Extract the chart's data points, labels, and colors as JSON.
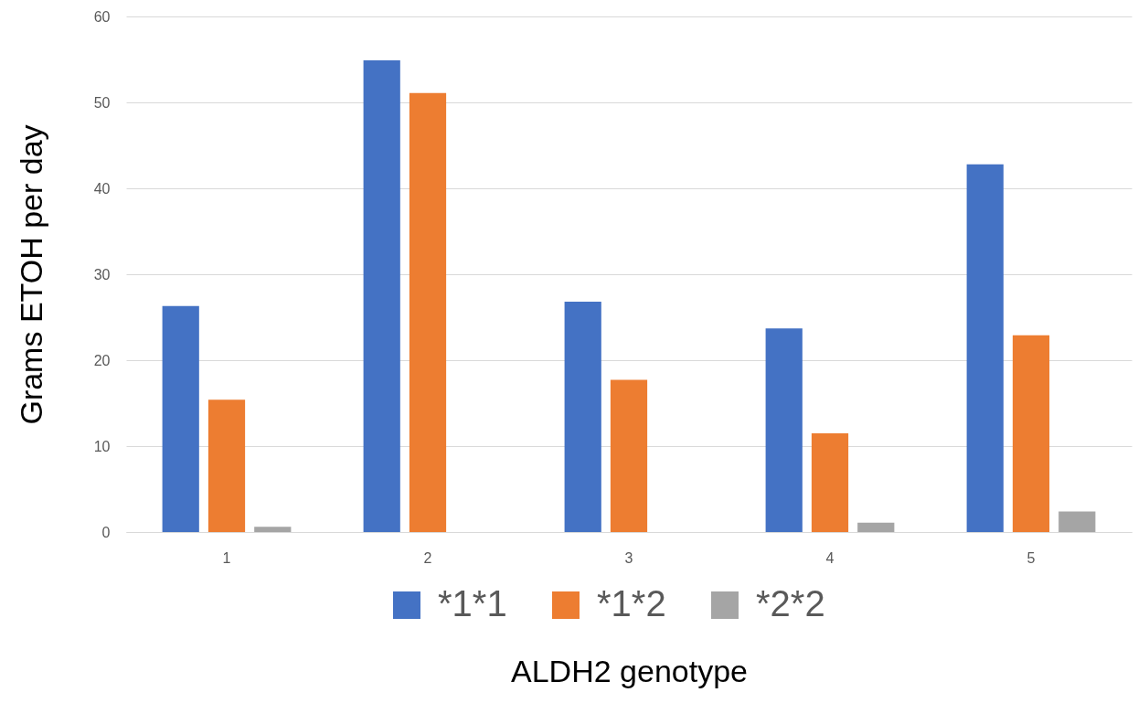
{
  "chart_data": {
    "type": "bar",
    "xlabel": "ALDH2 genotype",
    "ylabel": "Grams ETOH per day",
    "categories": [
      "1",
      "2",
      "3",
      "4",
      "5"
    ],
    "series": [
      {
        "name": "*1*1",
        "color": "#4472c4",
        "values": [
          26.3,
          54.9,
          26.8,
          23.7,
          42.8
        ]
      },
      {
        "name": "*1*2",
        "color": "#ed7d31",
        "values": [
          15.4,
          51.1,
          17.7,
          11.5,
          22.9
        ]
      },
      {
        "name": "*2*2",
        "color": "#a5a5a5",
        "values": [
          0.6,
          null,
          null,
          1.1,
          2.4
        ]
      }
    ],
    "ylim": [
      0,
      60
    ],
    "yticks": [
      0,
      10,
      20,
      30,
      40,
      50,
      60
    ],
    "grid": "y",
    "legend": "bottom"
  }
}
